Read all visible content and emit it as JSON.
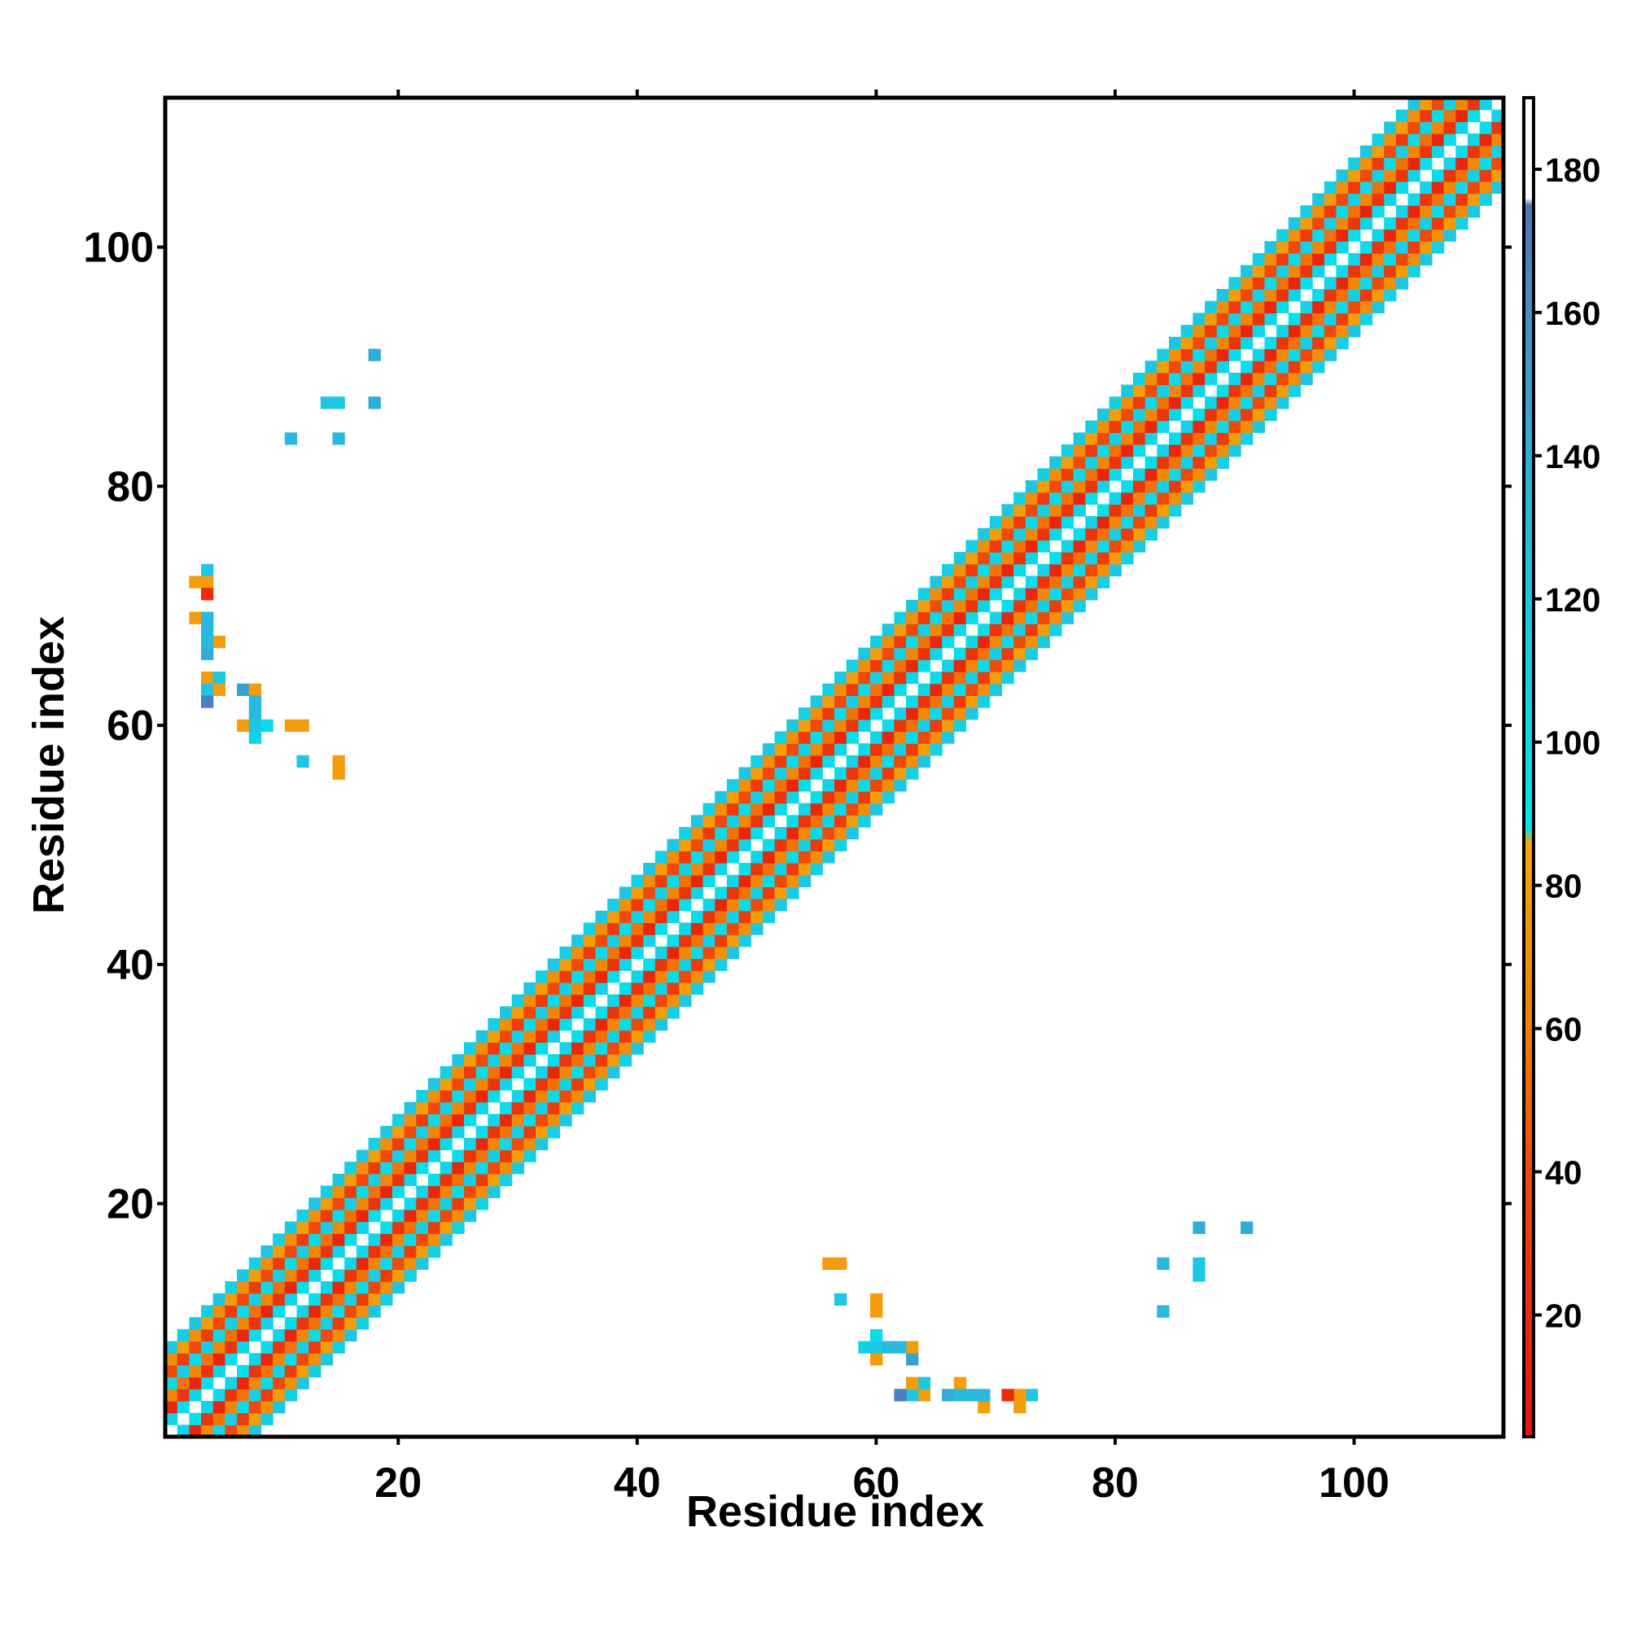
{
  "chart_data": {
    "type": "heatmap",
    "title": "",
    "xlabel": "Residue index",
    "ylabel": "Residue index",
    "xlim": [
      0.5,
      112.5
    ],
    "ylim": [
      0.5,
      112.5
    ],
    "x_ticks": [
      20,
      40,
      60,
      80,
      100
    ],
    "y_ticks": [
      20,
      40,
      60,
      80,
      100
    ],
    "colorbar": {
      "range": [
        3,
        190
      ],
      "ticks": [
        20,
        40,
        60,
        80,
        100,
        120,
        140,
        160,
        180
      ],
      "stops": [
        {
          "value": 3,
          "color": "#e8130b"
        },
        {
          "value": 40,
          "color": "#ef4a0a"
        },
        {
          "value": 60,
          "color": "#f07f08"
        },
        {
          "value": 86,
          "color": "#f5a60a"
        },
        {
          "value": 88,
          "color": "#00e5ec"
        },
        {
          "value": 120,
          "color": "#1dc7e3"
        },
        {
          "value": 150,
          "color": "#3aa0d0"
        },
        {
          "value": 175,
          "color": "#4f77b8"
        },
        {
          "value": 176,
          "color": "#ffffff"
        },
        {
          "value": 190,
          "color": "#ffffff"
        }
      ]
    },
    "diagonal_band": {
      "description": "contacts within ~7 residues of the diagonal, values alternate between low (red/orange) and high (cyan) angles",
      "offsets": [
        {
          "offset": 1,
          "value": 95
        },
        {
          "offset": 2,
          "value": 15
        },
        {
          "offset": 3,
          "value": 55
        },
        {
          "offset": 4,
          "value": 100
        },
        {
          "offset": 5,
          "value": 30
        },
        {
          "offset": 6,
          "value": 70
        },
        {
          "offset": 7,
          "value": 110
        }
      ]
    },
    "cells": [
      {
        "x": 4,
        "y": 73,
        "v": 120
      },
      {
        "x": 3,
        "y": 72,
        "v": 80
      },
      {
        "x": 4,
        "y": 72,
        "v": 80
      },
      {
        "x": 4,
        "y": 71,
        "v": 20
      },
      {
        "x": 3,
        "y": 69,
        "v": 80
      },
      {
        "x": 4,
        "y": 69,
        "v": 130
      },
      {
        "x": 4,
        "y": 68,
        "v": 130
      },
      {
        "x": 5,
        "y": 67,
        "v": 80
      },
      {
        "x": 4,
        "y": 67,
        "v": 130
      },
      {
        "x": 4,
        "y": 66,
        "v": 140
      },
      {
        "x": 4,
        "y": 64,
        "v": 80
      },
      {
        "x": 5,
        "y": 64,
        "v": 120
      },
      {
        "x": 4,
        "y": 63,
        "v": 120
      },
      {
        "x": 5,
        "y": 63,
        "v": 80
      },
      {
        "x": 4,
        "y": 62,
        "v": 170
      },
      {
        "x": 7,
        "y": 63,
        "v": 150
      },
      {
        "x": 8,
        "y": 63,
        "v": 80
      },
      {
        "x": 8,
        "y": 62,
        "v": 130
      },
      {
        "x": 8,
        "y": 61,
        "v": 130
      },
      {
        "x": 7,
        "y": 60,
        "v": 80
      },
      {
        "x": 8,
        "y": 60,
        "v": 120
      },
      {
        "x": 9,
        "y": 60,
        "v": 100
      },
      {
        "x": 8,
        "y": 59,
        "v": 110
      },
      {
        "x": 11,
        "y": 60,
        "v": 80
      },
      {
        "x": 12,
        "y": 60,
        "v": 80
      },
      {
        "x": 12,
        "y": 57,
        "v": 120
      },
      {
        "x": 15,
        "y": 57,
        "v": 80
      },
      {
        "x": 15,
        "y": 56,
        "v": 80
      },
      {
        "x": 18,
        "y": 91,
        "v": 140
      },
      {
        "x": 14,
        "y": 87,
        "v": 120
      },
      {
        "x": 15,
        "y": 87,
        "v": 120
      },
      {
        "x": 18,
        "y": 87,
        "v": 140
      },
      {
        "x": 11,
        "y": 84,
        "v": 130
      },
      {
        "x": 15,
        "y": 84,
        "v": 130
      },
      {
        "x": 73,
        "y": 4,
        "v": 120
      },
      {
        "x": 72,
        "y": 3,
        "v": 80
      },
      {
        "x": 72,
        "y": 4,
        "v": 80
      },
      {
        "x": 71,
        "y": 4,
        "v": 20
      },
      {
        "x": 69,
        "y": 3,
        "v": 80
      },
      {
        "x": 69,
        "y": 4,
        "v": 130
      },
      {
        "x": 68,
        "y": 4,
        "v": 130
      },
      {
        "x": 67,
        "y": 5,
        "v": 80
      },
      {
        "x": 67,
        "y": 4,
        "v": 130
      },
      {
        "x": 66,
        "y": 4,
        "v": 140
      },
      {
        "x": 64,
        "y": 4,
        "v": 80
      },
      {
        "x": 64,
        "y": 5,
        "v": 120
      },
      {
        "x": 63,
        "y": 4,
        "v": 120
      },
      {
        "x": 63,
        "y": 5,
        "v": 80
      },
      {
        "x": 62,
        "y": 4,
        "v": 170
      },
      {
        "x": 63,
        "y": 7,
        "v": 150
      },
      {
        "x": 63,
        "y": 8,
        "v": 80
      },
      {
        "x": 62,
        "y": 8,
        "v": 130
      },
      {
        "x": 61,
        "y": 8,
        "v": 130
      },
      {
        "x": 60,
        "y": 7,
        "v": 80
      },
      {
        "x": 60,
        "y": 8,
        "v": 120
      },
      {
        "x": 60,
        "y": 9,
        "v": 100
      },
      {
        "x": 59,
        "y": 8,
        "v": 110
      },
      {
        "x": 60,
        "y": 11,
        "v": 80
      },
      {
        "x": 60,
        "y": 12,
        "v": 80
      },
      {
        "x": 57,
        "y": 12,
        "v": 120
      },
      {
        "x": 57,
        "y": 15,
        "v": 80
      },
      {
        "x": 56,
        "y": 15,
        "v": 80
      },
      {
        "x": 91,
        "y": 18,
        "v": 140
      },
      {
        "x": 87,
        "y": 14,
        "v": 120
      },
      {
        "x": 87,
        "y": 15,
        "v": 120
      },
      {
        "x": 87,
        "y": 18,
        "v": 140
      },
      {
        "x": 84,
        "y": 11,
        "v": 130
      },
      {
        "x": 84,
        "y": 15,
        "v": 130
      }
    ]
  }
}
